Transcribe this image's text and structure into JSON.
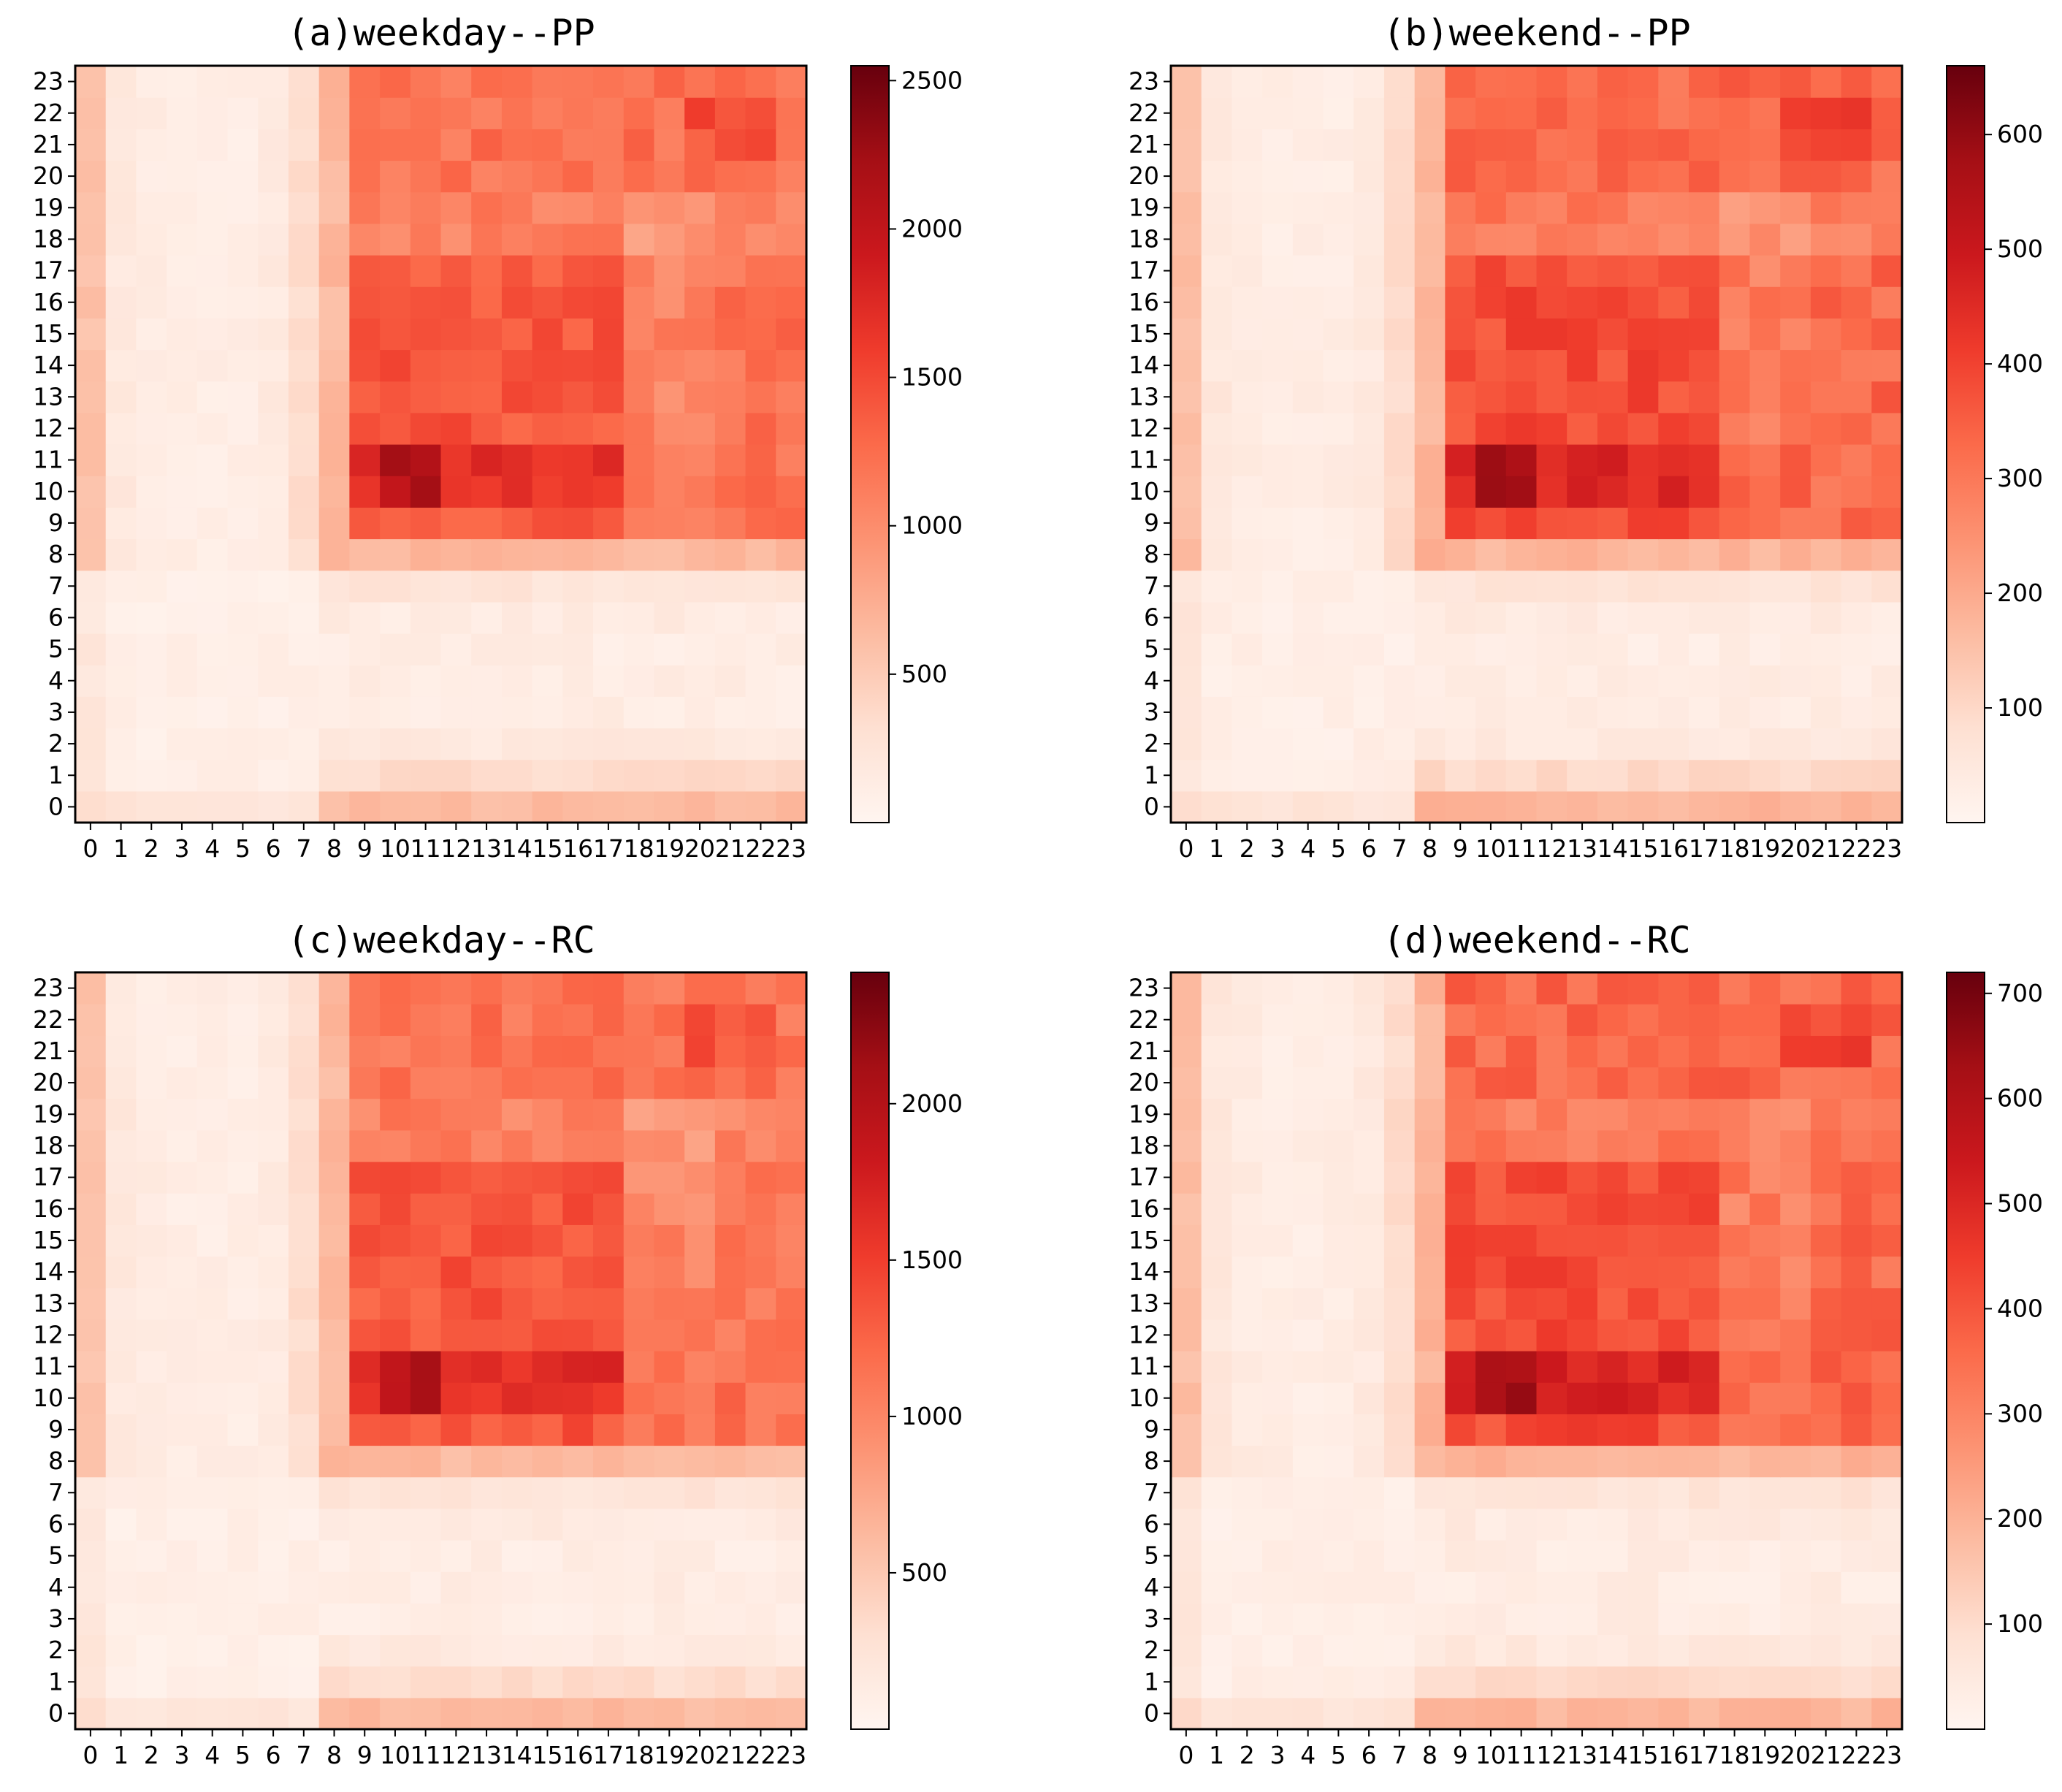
{
  "chart_data": [
    {
      "type": "heatmap",
      "title": "(a)weekday--PP",
      "x_ticks": [
        "0",
        "1",
        "2",
        "3",
        "4",
        "5",
        "6",
        "7",
        "8",
        "9",
        "10",
        "11",
        "12",
        "13",
        "14",
        "15",
        "16",
        "17",
        "18",
        "19",
        "20",
        "21",
        "22",
        "23"
      ],
      "y_ticks": [
        "0",
        "1",
        "2",
        "3",
        "4",
        "5",
        "6",
        "7",
        "8",
        "9",
        "10",
        "11",
        "12",
        "13",
        "14",
        "15",
        "16",
        "17",
        "18",
        "19",
        "20",
        "21",
        "22",
        "23"
      ],
      "colorbar": {
        "min": 0,
        "max": 2550,
        "ticks": [
          "500",
          "1000",
          "1500",
          "2000",
          "2500"
        ],
        "tick_values": [
          500,
          1000,
          1500,
          2000,
          2500
        ]
      },
      "colormap": "Reds",
      "estimated_levels": {
        "baseline": 60,
        "row_0_23_band": 700,
        "inner_block": 1200,
        "inner_block_peak": 2500
      }
    },
    {
      "type": "heatmap",
      "title": "(b)weekend--PP",
      "x_ticks": [
        "0",
        "1",
        "2",
        "3",
        "4",
        "5",
        "6",
        "7",
        "8",
        "9",
        "10",
        "11",
        "12",
        "13",
        "14",
        "15",
        "16",
        "17",
        "18",
        "19",
        "20",
        "21",
        "22",
        "23"
      ],
      "y_ticks": [
        "0",
        "1",
        "2",
        "3",
        "4",
        "5",
        "6",
        "7",
        "8",
        "9",
        "10",
        "11",
        "12",
        "13",
        "14",
        "15",
        "16",
        "17",
        "18",
        "19",
        "20",
        "21",
        "22",
        "23"
      ],
      "colorbar": {
        "min": 0,
        "max": 660,
        "ticks": [
          "100",
          "200",
          "300",
          "400",
          "500",
          "600"
        ],
        "tick_values": [
          100,
          200,
          300,
          400,
          500,
          600
        ]
      },
      "colormap": "Reds",
      "estimated_levels": {
        "baseline": 20,
        "row_0_23_band": 220,
        "inner_block": 420,
        "inner_block_peak": 650
      }
    },
    {
      "type": "heatmap",
      "title": "(c)weekday--RC",
      "x_ticks": [
        "0",
        "1",
        "2",
        "3",
        "4",
        "5",
        "6",
        "7",
        "8",
        "9",
        "10",
        "11",
        "12",
        "13",
        "14",
        "15",
        "16",
        "17",
        "18",
        "19",
        "20",
        "21",
        "22",
        "23"
      ],
      "y_ticks": [
        "0",
        "1",
        "2",
        "3",
        "4",
        "5",
        "6",
        "7",
        "8",
        "9",
        "10",
        "11",
        "12",
        "13",
        "14",
        "15",
        "16",
        "17",
        "18",
        "19",
        "20",
        "21",
        "22",
        "23"
      ],
      "colorbar": {
        "min": 0,
        "max": 2420,
        "ticks": [
          "500",
          "1000",
          "1500",
          "2000"
        ],
        "tick_values": [
          500,
          1000,
          1500,
          2000
        ]
      },
      "colormap": "Reds",
      "estimated_levels": {
        "baseline": 60,
        "row_0_23_band": 700,
        "inner_block": 1150,
        "inner_block_peak": 2400
      }
    },
    {
      "type": "heatmap",
      "title": "(d)weekend--RC",
      "x_ticks": [
        "0",
        "1",
        "2",
        "3",
        "4",
        "5",
        "6",
        "7",
        "8",
        "9",
        "10",
        "11",
        "12",
        "13",
        "14",
        "15",
        "16",
        "17",
        "18",
        "19",
        "20",
        "21",
        "22",
        "23"
      ],
      "y_ticks": [
        "0",
        "1",
        "2",
        "3",
        "4",
        "5",
        "6",
        "7",
        "8",
        "9",
        "10",
        "11",
        "12",
        "13",
        "14",
        "15",
        "16",
        "17",
        "18",
        "19",
        "20",
        "21",
        "22",
        "23"
      ],
      "colorbar": {
        "min": 0,
        "max": 720,
        "ticks": [
          "100",
          "200",
          "300",
          "400",
          "500",
          "600",
          "700"
        ],
        "tick_values": [
          100,
          200,
          300,
          400,
          500,
          600,
          700
        ]
      },
      "colormap": "Reds",
      "estimated_levels": {
        "baseline": 25,
        "row_0_23_band": 250,
        "inner_block": 460,
        "inner_block_peak": 710
      }
    }
  ]
}
